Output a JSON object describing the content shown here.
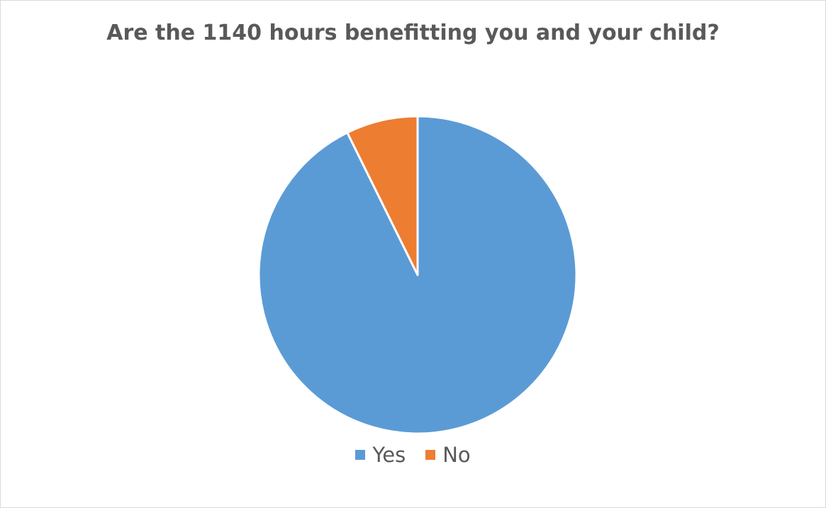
{
  "chart_data": {
    "type": "pie",
    "title": "Are the 1140 hours benefitting you and your child?",
    "categories": [
      "Yes",
      "No"
    ],
    "values": [
      92.7,
      7.3
    ],
    "colors": [
      "#5b9bd5",
      "#ed7d31"
    ],
    "start_angle_deg": 0,
    "direction": "clockwise",
    "legend_position": "bottom",
    "data_labels": false
  }
}
